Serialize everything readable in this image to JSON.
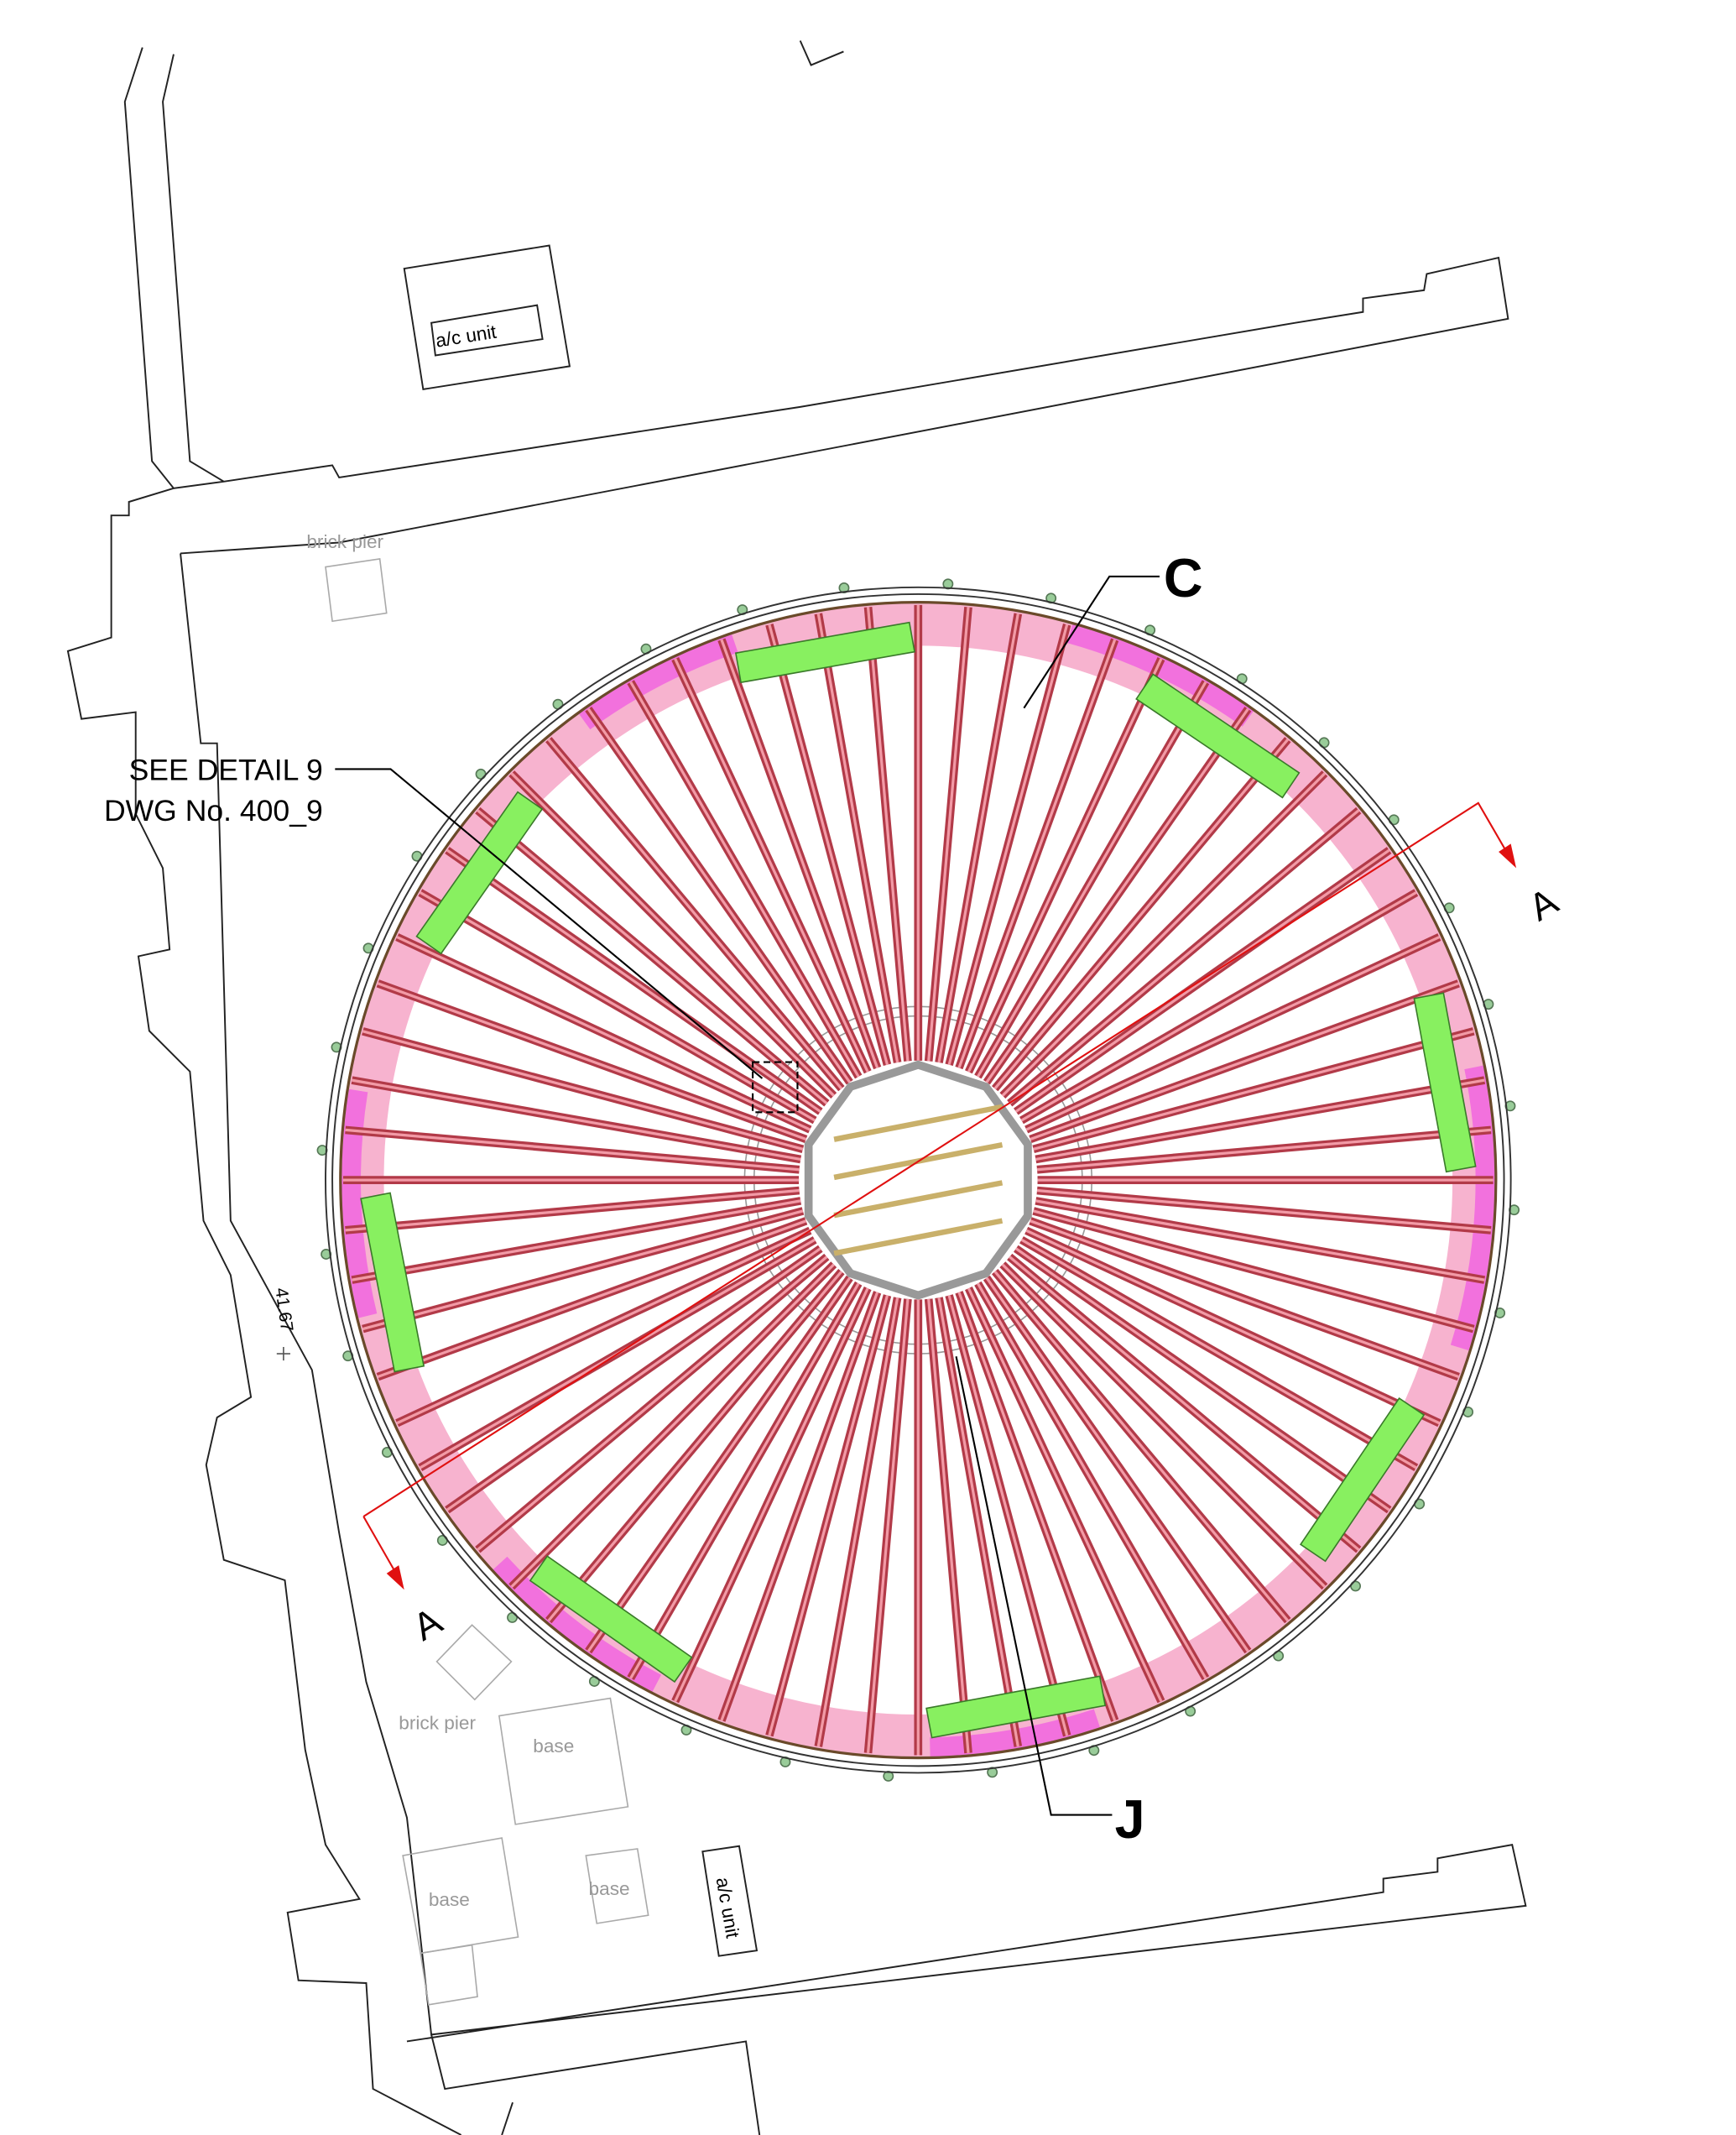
{
  "labels": {
    "ac_unit_top": "a/c unit",
    "brick_pier_top": "brick pier",
    "detail_line_1": "SEE DETAIL 9",
    "detail_line_2": "DWG No. 400_9",
    "callout_c": "C",
    "section_a_right": "A",
    "section_a_left": "A",
    "dimension": "41.67",
    "brick_pier_bottom": "brick pier",
    "base_1": "base",
    "base_2": "base",
    "base_3": "base",
    "ac_unit_bottom": "a/c unit",
    "callout_j": "J"
  }
}
